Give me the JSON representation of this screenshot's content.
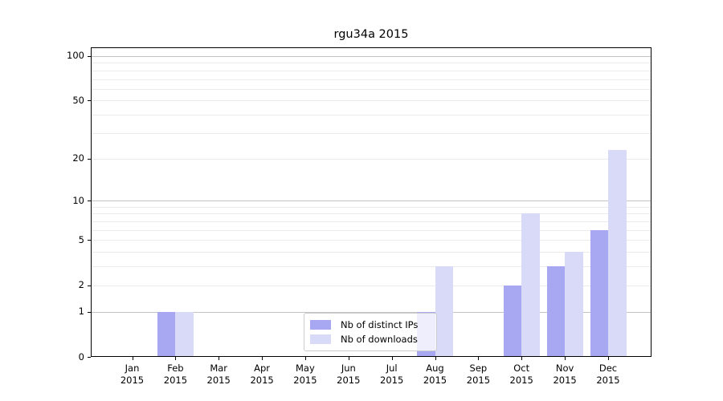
{
  "chart_data": {
    "type": "bar",
    "title": "rgu34a 2015",
    "scale": "log1p",
    "categories": [
      {
        "month": "Jan",
        "year": "2015"
      },
      {
        "month": "Feb",
        "year": "2015"
      },
      {
        "month": "Mar",
        "year": "2015"
      },
      {
        "month": "Apr",
        "year": "2015"
      },
      {
        "month": "May",
        "year": "2015"
      },
      {
        "month": "Jun",
        "year": "2015"
      },
      {
        "month": "Jul",
        "year": "2015"
      },
      {
        "month": "Aug",
        "year": "2015"
      },
      {
        "month": "Sep",
        "year": "2015"
      },
      {
        "month": "Oct",
        "year": "2015"
      },
      {
        "month": "Nov",
        "year": "2015"
      },
      {
        "month": "Dec",
        "year": "2015"
      }
    ],
    "series": [
      {
        "name": "Nb of distinct IPs",
        "color": "#a8a8f2",
        "values": [
          0,
          1,
          0,
          0,
          0,
          0,
          0,
          1,
          0,
          2,
          3,
          6
        ]
      },
      {
        "name": "Nb of downloads",
        "color": "#d9d9f8",
        "values": [
          0,
          1,
          0,
          0,
          0,
          0,
          0,
          3,
          0,
          8,
          4,
          23
        ]
      }
    ],
    "yticks": [
      0,
      1,
      2,
      5,
      10,
      20,
      50,
      100
    ],
    "major_gridlines": [
      1,
      10,
      100
    ],
    "minor_gridlines": [
      2,
      3,
      4,
      5,
      6,
      7,
      8,
      9,
      20,
      30,
      40,
      50,
      60,
      70,
      80,
      90
    ],
    "ylim": [
      0,
      115
    ],
    "grid": "horizontal",
    "legend_position": "lower center",
    "colors": {
      "major_grid": "#c3c3c3",
      "minor_grid": "#ebebeb",
      "spine": "#000000",
      "background": "#ffffff"
    }
  }
}
